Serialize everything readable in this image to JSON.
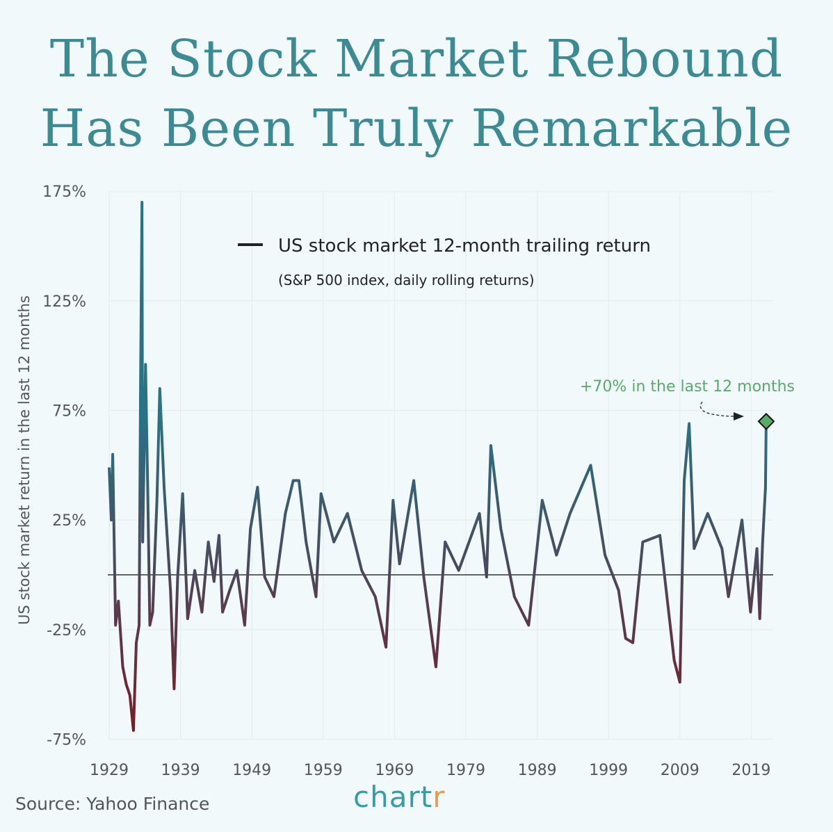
{
  "chart_data": {
    "type": "line",
    "title_lines": [
      "The Stock Market Rebound",
      "Has Been Truly Remarkable"
    ],
    "ylabel": "US stock market return in the last 12 months",
    "xlabel": "",
    "legend": {
      "label": "US stock market 12-month trailing return",
      "sublabel": "(S&P 500 index, daily rolling returns)",
      "placement": "top-center"
    },
    "annotation": {
      "text": "+70% in the last 12 months",
      "year": 2021.1,
      "value": 70,
      "color": "#5aaa6a"
    },
    "xlim": [
      1929,
      2021.3
    ],
    "ylim": [
      -75,
      175
    ],
    "x_ticks": [
      1929,
      1939,
      1949,
      1959,
      1969,
      1979,
      1989,
      1999,
      2009,
      2019
    ],
    "y_ticks": [
      175,
      125,
      75,
      25,
      -25,
      -75
    ],
    "y_tick_labels": [
      "175%",
      "125%",
      "75%",
      "25%",
      "-25%",
      "-75%"
    ],
    "grid": true,
    "zero_line": true,
    "colors": {
      "positive": "#2a7285",
      "negative": "#7a1a24",
      "marker": "#5aaa6a"
    },
    "points": [
      [
        1929.0,
        49
      ],
      [
        1929.3,
        25
      ],
      [
        1929.5,
        55
      ],
      [
        1929.9,
        -23
      ],
      [
        1930.3,
        -12
      ],
      [
        1930.9,
        -42
      ],
      [
        1931.4,
        -50
      ],
      [
        1931.9,
        -55
      ],
      [
        1932.4,
        -71
      ],
      [
        1932.8,
        -31
      ],
      [
        1933.2,
        -23
      ],
      [
        1933.4,
        85
      ],
      [
        1933.6,
        170
      ],
      [
        1933.7,
        15
      ],
      [
        1934.1,
        96
      ],
      [
        1934.4,
        40
      ],
      [
        1934.7,
        -23
      ],
      [
        1935.1,
        -17
      ],
      [
        1935.7,
        34
      ],
      [
        1936.1,
        85
      ],
      [
        1936.7,
        40
      ],
      [
        1937.6,
        -7
      ],
      [
        1938.1,
        -52
      ],
      [
        1938.6,
        -1
      ],
      [
        1939.3,
        37
      ],
      [
        1940.0,
        -20
      ],
      [
        1941.0,
        2
      ],
      [
        1942.0,
        -17
      ],
      [
        1942.9,
        15
      ],
      [
        1943.7,
        -3
      ],
      [
        1944.4,
        18
      ],
      [
        1944.9,
        -17
      ],
      [
        1945.9,
        -7
      ],
      [
        1946.9,
        2
      ],
      [
        1948.0,
        -23
      ],
      [
        1948.8,
        21
      ],
      [
        1949.8,
        40
      ],
      [
        1950.8,
        -1
      ],
      [
        1952.1,
        -10
      ],
      [
        1953.7,
        28
      ],
      [
        1954.8,
        43
      ],
      [
        1955.6,
        43
      ],
      [
        1956.6,
        15
      ],
      [
        1958.0,
        -10
      ],
      [
        1958.7,
        37
      ],
      [
        1960.5,
        15
      ],
      [
        1962.4,
        28
      ],
      [
        1964.4,
        2
      ],
      [
        1966.3,
        -10
      ],
      [
        1967.8,
        -33
      ],
      [
        1968.8,
        34
      ],
      [
        1969.7,
        5
      ],
      [
        1971.7,
        43
      ],
      [
        1973.1,
        -1
      ],
      [
        1974.8,
        -42
      ],
      [
        1976.1,
        15
      ],
      [
        1978.0,
        2
      ],
      [
        1980.9,
        28
      ],
      [
        1981.9,
        -1
      ],
      [
        1982.5,
        59
      ],
      [
        1983.9,
        21
      ],
      [
        1985.8,
        -10
      ],
      [
        1987.8,
        -23
      ],
      [
        1989.7,
        34
      ],
      [
        1991.7,
        9
      ],
      [
        1993.6,
        28
      ],
      [
        1996.5,
        50
      ],
      [
        1998.5,
        9
      ],
      [
        2000.4,
        -7
      ],
      [
        2001.4,
        -29
      ],
      [
        2002.4,
        -31
      ],
      [
        2003.8,
        15
      ],
      [
        2006.2,
        18
      ],
      [
        2008.2,
        -39
      ],
      [
        2009.0,
        -49
      ],
      [
        2009.6,
        43
      ],
      [
        2010.3,
        69
      ],
      [
        2011.0,
        12
      ],
      [
        2012.9,
        28
      ],
      [
        2014.9,
        12
      ],
      [
        2015.8,
        -10
      ],
      [
        2017.7,
        25
      ],
      [
        2018.9,
        -17
      ],
      [
        2019.8,
        12
      ],
      [
        2020.2,
        -20
      ],
      [
        2020.6,
        15
      ],
      [
        2021.0,
        40
      ],
      [
        2021.1,
        70
      ]
    ]
  },
  "source": "Source: Yahoo Finance",
  "logo": {
    "main": "chart",
    "accent": "r"
  }
}
